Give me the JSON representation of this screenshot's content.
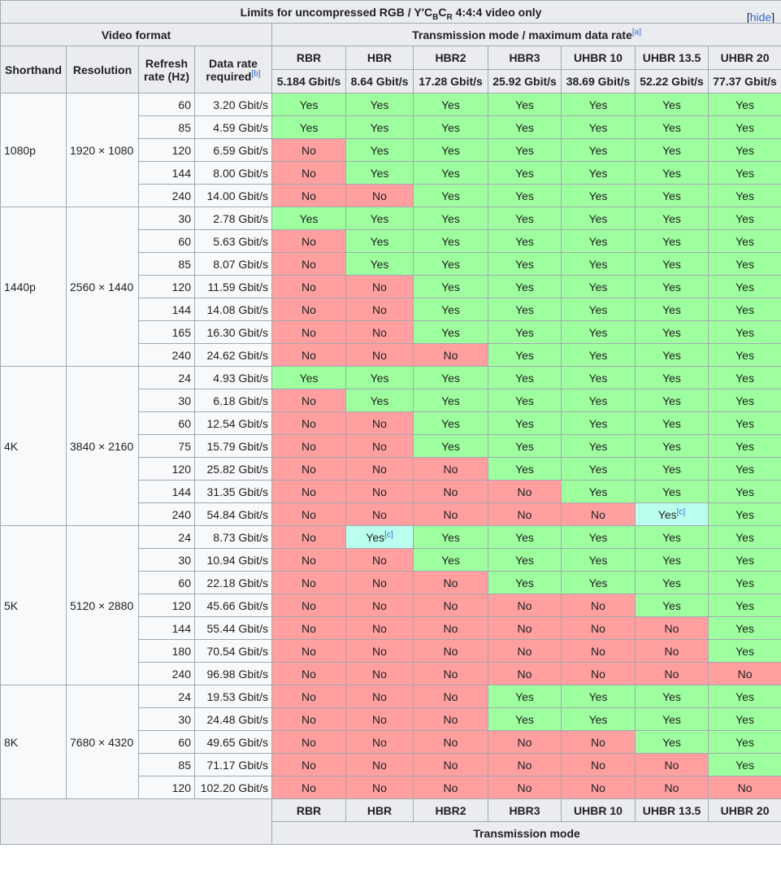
{
  "caption": {
    "prefix": "Limits for uncompressed RGB / Y′C",
    "sub_b": "B",
    "mid_c": "C",
    "sub_r": "R",
    "suffix": " 4:4:4 video only",
    "hide_open": "[",
    "hide_label": "hide",
    "hide_close": "]"
  },
  "headers": {
    "video_format": "Video format",
    "transmission": "Transmission mode / maximum data rate",
    "transmission_note": "[a]",
    "shorthand": "Shorthand",
    "resolution": "Resolution",
    "refresh_line1": "Refresh",
    "refresh_line2": "rate (Hz)",
    "datarate_line1": "Data rate",
    "datarate_line2": "required",
    "datarate_note": "[b]",
    "footer_mode": "Transmission mode"
  },
  "modes": [
    {
      "name": "RBR",
      "rate": "5.184 Gbit/s"
    },
    {
      "name": "HBR",
      "rate": "8.64 Gbit/s"
    },
    {
      "name": "HBR2",
      "rate": "17.28 Gbit/s"
    },
    {
      "name": "HBR3",
      "rate": "25.92 Gbit/s"
    },
    {
      "name": "UHBR 10",
      "rate": "38.69 Gbit/s"
    },
    {
      "name": "UHBR 13.5",
      "rate": "52.22 Gbit/s"
    },
    {
      "name": "UHBR 20",
      "rate": "77.37 Gbit/s"
    }
  ],
  "values": {
    "yes": "Yes",
    "no": "No",
    "note_c": "[c]"
  },
  "groups": [
    {
      "shorthand": "1080p",
      "resolution": "1920 × 1080",
      "rows": [
        {
          "hz": "60",
          "rate": "3.20 Gbit/s",
          "cells": [
            "Y",
            "Y",
            "Y",
            "Y",
            "Y",
            "Y",
            "Y"
          ]
        },
        {
          "hz": "85",
          "rate": "4.59 Gbit/s",
          "cells": [
            "Y",
            "Y",
            "Y",
            "Y",
            "Y",
            "Y",
            "Y"
          ]
        },
        {
          "hz": "120",
          "rate": "6.59 Gbit/s",
          "cells": [
            "N",
            "Y",
            "Y",
            "Y",
            "Y",
            "Y",
            "Y"
          ]
        },
        {
          "hz": "144",
          "rate": "8.00 Gbit/s",
          "cells": [
            "N",
            "Y",
            "Y",
            "Y",
            "Y",
            "Y",
            "Y"
          ]
        },
        {
          "hz": "240",
          "rate": "14.00 Gbit/s",
          "cells": [
            "N",
            "N",
            "Y",
            "Y",
            "Y",
            "Y",
            "Y"
          ]
        }
      ]
    },
    {
      "shorthand": "1440p",
      "resolution": "2560 × 1440",
      "rows": [
        {
          "hz": "30",
          "rate": "2.78 Gbit/s",
          "cells": [
            "Y",
            "Y",
            "Y",
            "Y",
            "Y",
            "Y",
            "Y"
          ]
        },
        {
          "hz": "60",
          "rate": "5.63 Gbit/s",
          "cells": [
            "N",
            "Y",
            "Y",
            "Y",
            "Y",
            "Y",
            "Y"
          ]
        },
        {
          "hz": "85",
          "rate": "8.07 Gbit/s",
          "cells": [
            "N",
            "Y",
            "Y",
            "Y",
            "Y",
            "Y",
            "Y"
          ]
        },
        {
          "hz": "120",
          "rate": "11.59 Gbit/s",
          "cells": [
            "N",
            "N",
            "Y",
            "Y",
            "Y",
            "Y",
            "Y"
          ]
        },
        {
          "hz": "144",
          "rate": "14.08 Gbit/s",
          "cells": [
            "N",
            "N",
            "Y",
            "Y",
            "Y",
            "Y",
            "Y"
          ]
        },
        {
          "hz": "165",
          "rate": "16.30 Gbit/s",
          "cells": [
            "N",
            "N",
            "Y",
            "Y",
            "Y",
            "Y",
            "Y"
          ]
        },
        {
          "hz": "240",
          "rate": "24.62 Gbit/s",
          "cells": [
            "N",
            "N",
            "N",
            "Y",
            "Y",
            "Y",
            "Y"
          ]
        }
      ]
    },
    {
      "shorthand": "4K",
      "resolution": "3840 × 2160",
      "rows": [
        {
          "hz": "24",
          "rate": "4.93 Gbit/s",
          "cells": [
            "Y",
            "Y",
            "Y",
            "Y",
            "Y",
            "Y",
            "Y"
          ]
        },
        {
          "hz": "30",
          "rate": "6.18 Gbit/s",
          "cells": [
            "N",
            "Y",
            "Y",
            "Y",
            "Y",
            "Y",
            "Y"
          ]
        },
        {
          "hz": "60",
          "rate": "12.54 Gbit/s",
          "cells": [
            "N",
            "N",
            "Y",
            "Y",
            "Y",
            "Y",
            "Y"
          ]
        },
        {
          "hz": "75",
          "rate": "15.79 Gbit/s",
          "cells": [
            "N",
            "N",
            "Y",
            "Y",
            "Y",
            "Y",
            "Y"
          ]
        },
        {
          "hz": "120",
          "rate": "25.82 Gbit/s",
          "cells": [
            "N",
            "N",
            "N",
            "Y",
            "Y",
            "Y",
            "Y"
          ]
        },
        {
          "hz": "144",
          "rate": "31.35 Gbit/s",
          "cells": [
            "N",
            "N",
            "N",
            "N",
            "Y",
            "Y",
            "Y"
          ]
        },
        {
          "hz": "240",
          "rate": "54.84 Gbit/s",
          "cells": [
            "N",
            "N",
            "N",
            "N",
            "N",
            "C",
            "Y"
          ]
        }
      ]
    },
    {
      "shorthand": "5K",
      "resolution": "5120 × 2880",
      "rows": [
        {
          "hz": "24",
          "rate": "8.73 Gbit/s",
          "cells": [
            "N",
            "C",
            "Y",
            "Y",
            "Y",
            "Y",
            "Y"
          ]
        },
        {
          "hz": "30",
          "rate": "10.94 Gbit/s",
          "cells": [
            "N",
            "N",
            "Y",
            "Y",
            "Y",
            "Y",
            "Y"
          ]
        },
        {
          "hz": "60",
          "rate": "22.18 Gbit/s",
          "cells": [
            "N",
            "N",
            "N",
            "Y",
            "Y",
            "Y",
            "Y"
          ]
        },
        {
          "hz": "120",
          "rate": "45.66 Gbit/s",
          "cells": [
            "N",
            "N",
            "N",
            "N",
            "N",
            "Y",
            "Y"
          ]
        },
        {
          "hz": "144",
          "rate": "55.44 Gbit/s",
          "cells": [
            "N",
            "N",
            "N",
            "N",
            "N",
            "N",
            "Y"
          ]
        },
        {
          "hz": "180",
          "rate": "70.54 Gbit/s",
          "cells": [
            "N",
            "N",
            "N",
            "N",
            "N",
            "N",
            "Y"
          ]
        },
        {
          "hz": "240",
          "rate": "96.98 Gbit/s",
          "cells": [
            "N",
            "N",
            "N",
            "N",
            "N",
            "N",
            "N"
          ]
        }
      ]
    },
    {
      "shorthand": "8K",
      "resolution": "7680 × 4320",
      "rows": [
        {
          "hz": "24",
          "rate": "19.53 Gbit/s",
          "cells": [
            "N",
            "N",
            "N",
            "Y",
            "Y",
            "Y",
            "Y"
          ]
        },
        {
          "hz": "30",
          "rate": "24.48 Gbit/s",
          "cells": [
            "N",
            "N",
            "N",
            "Y",
            "Y",
            "Y",
            "Y"
          ]
        },
        {
          "hz": "60",
          "rate": "49.65 Gbit/s",
          "cells": [
            "N",
            "N",
            "N",
            "N",
            "N",
            "Y",
            "Y"
          ]
        },
        {
          "hz": "85",
          "rate": "71.17 Gbit/s",
          "cells": [
            "N",
            "N",
            "N",
            "N",
            "N",
            "N",
            "Y"
          ]
        },
        {
          "hz": "120",
          "rate": "102.20 Gbit/s",
          "cells": [
            "N",
            "N",
            "N",
            "N",
            "N",
            "N",
            "N"
          ]
        }
      ]
    }
  ],
  "colors": {
    "yes": "#9eff9e",
    "no": "#ff9f9f",
    "note": "#bbffee",
    "header": "#eaecf0",
    "link": "#3366cc"
  }
}
